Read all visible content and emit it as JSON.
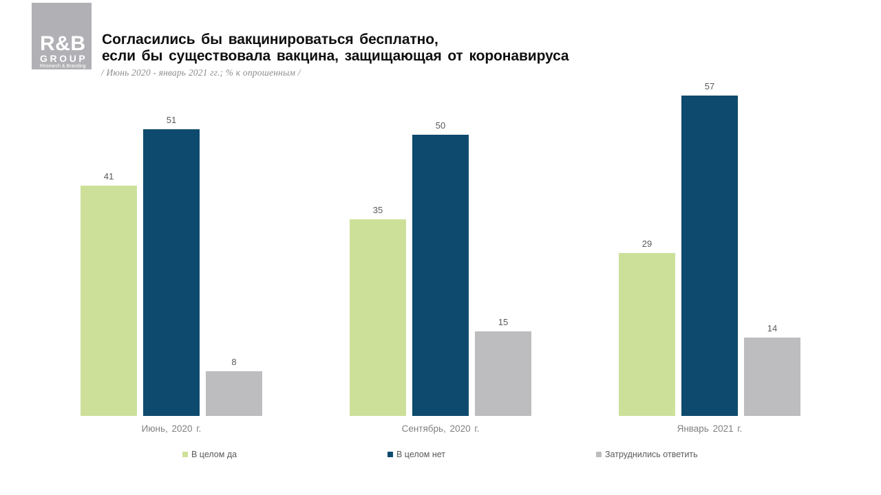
{
  "logo": {
    "line1": "R&B",
    "line2": "GROUP",
    "line3": "Research & Branding"
  },
  "header": {
    "title_line1": "Согласились бы вакцинироваться бесплатно,",
    "title_line2": "если бы существовала вакцина, защищающая от коронавируса",
    "subtitle": "/ Июнь 2020  - январь 2021 гг.; % к опрошенным /"
  },
  "chart_data": {
    "type": "bar",
    "title": "Согласились бы вакцинироваться бесплатно, если бы существовала вакцина, защищающая от коронавируса",
    "subtitle": "/ Июнь 2020 - январь 2021 гг.; % к опрошенным /",
    "categories": [
      "Июнь, 2020 г.",
      "Сентябрь,  2020 г.",
      "Январь 2021 г."
    ],
    "series": [
      {
        "name": "В целом да",
        "color": "#cde09a",
        "values": [
          41,
          35,
          29
        ]
      },
      {
        "name": "В целом нет",
        "color": "#0e4a6d",
        "values": [
          51,
          50,
          57
        ]
      },
      {
        "name": "Затруднились ответить",
        "color": "#bdbdc0",
        "values": [
          8,
          15,
          14
        ]
      }
    ],
    "ylim": [
      0,
      60
    ],
    "grid": false,
    "axes_visible": false,
    "value_labels": true,
    "legend_position": "bottom"
  },
  "colors": {
    "logo_background": "#b1b1b5",
    "title_text": "#0f0f0f",
    "subtitle_text": "#8c8c8c",
    "value_label_text": "#595959",
    "category_label_text": "#7f7f7f",
    "legend_text": "#595959",
    "background": "#ffffff"
  }
}
